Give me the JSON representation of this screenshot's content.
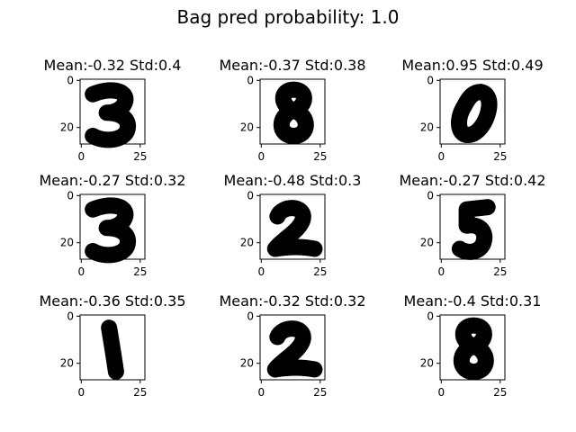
{
  "chart_data": {
    "type": "image-grid",
    "title": "Bag pred probability: 1.0",
    "axis_ticks": {
      "x": [
        "0",
        "25"
      ],
      "y": [
        "0",
        "20"
      ]
    },
    "panels": [
      {
        "title": "Mean:-0.32 Std:0.4",
        "digit": "3"
      },
      {
        "title": "Mean:-0.37 Std:0.38",
        "digit": "8"
      },
      {
        "title": "Mean:0.95 Std:0.49",
        "digit": "0"
      },
      {
        "title": "Mean:-0.27 Std:0.32",
        "digit": "3"
      },
      {
        "title": "Mean:-0.48 Std:0.3",
        "digit": "2"
      },
      {
        "title": "Mean:-0.27 Std:0.42",
        "digit": "5"
      },
      {
        "title": "Mean:-0.36 Std:0.35",
        "digit": "1"
      },
      {
        "title": "Mean:-0.32 Std:0.32",
        "digit": "2"
      },
      {
        "title": "Mean:-0.4 Std:0.31",
        "digit": "8"
      }
    ]
  }
}
